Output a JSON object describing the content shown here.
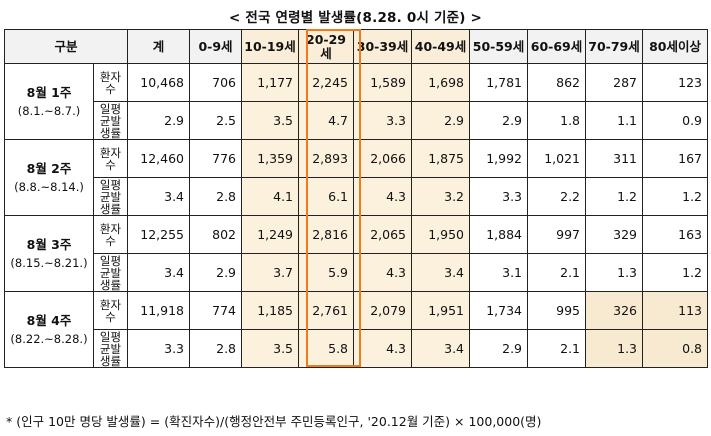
{
  "title": "< 전국 연령별 발생률(8.28. 0시 기준) >",
  "table": {
    "headers": [
      "구분",
      "계",
      "0-9세",
      "10-19세",
      "20-29세",
      "30-39세",
      "40-49세",
      "50-59세",
      "60-69세",
      "70-79세",
      "80세이상"
    ],
    "metric_cases": "환자수",
    "metric_rate": "일평균발생률",
    "weeks": [
      {
        "label": "8월 1주",
        "range": "(8.1.~8.7.)",
        "cases": [
          "10,468",
          "706",
          "1,177",
          "2,245",
          "1,589",
          "1,698",
          "1,781",
          "862",
          "287",
          "123"
        ],
        "rate": [
          "2.9",
          "2.5",
          "3.5",
          "4.7",
          "3.3",
          "2.9",
          "2.9",
          "1.8",
          "1.1",
          "0.9"
        ]
      },
      {
        "label": "8월 2주",
        "range": "(8.8.~8.14.)",
        "cases": [
          "12,460",
          "776",
          "1,359",
          "2,893",
          "2,066",
          "1,875",
          "1,992",
          "1,021",
          "311",
          "167"
        ],
        "rate": [
          "3.4",
          "2.8",
          "4.1",
          "6.1",
          "4.3",
          "3.2",
          "3.3",
          "2.2",
          "1.2",
          "1.2"
        ]
      },
      {
        "label": "8월 3주",
        "range": "(8.15.~8.21.)",
        "cases": [
          "12,255",
          "802",
          "1,249",
          "2,816",
          "2,065",
          "1,950",
          "1,884",
          "997",
          "329",
          "163"
        ],
        "rate": [
          "3.4",
          "2.9",
          "3.7",
          "5.9",
          "4.3",
          "3.4",
          "3.1",
          "2.1",
          "1.3",
          "1.2"
        ]
      },
      {
        "label": "8월 4주",
        "range": "(8.22.~8.28.)",
        "cases": [
          "11,918",
          "774",
          "1,185",
          "2,761",
          "2,079",
          "1,951",
          "1,734",
          "995",
          "326",
          "113"
        ],
        "rate": [
          "3.3",
          "2.8",
          "3.5",
          "5.8",
          "4.3",
          "3.4",
          "2.9",
          "2.1",
          "1.3",
          "0.8"
        ]
      }
    ]
  },
  "footnote": "* (인구 10만 명당 발생률) = (확진자수)/(행정안전부 주민등록인구, '20.12월 기준) × 100,000(명)",
  "colors": {
    "highlight": "#fbf1dd",
    "highlight_strong": "#f7ead0",
    "frame": "#f07a1c",
    "header_bg": "#f2f2f2"
  }
}
